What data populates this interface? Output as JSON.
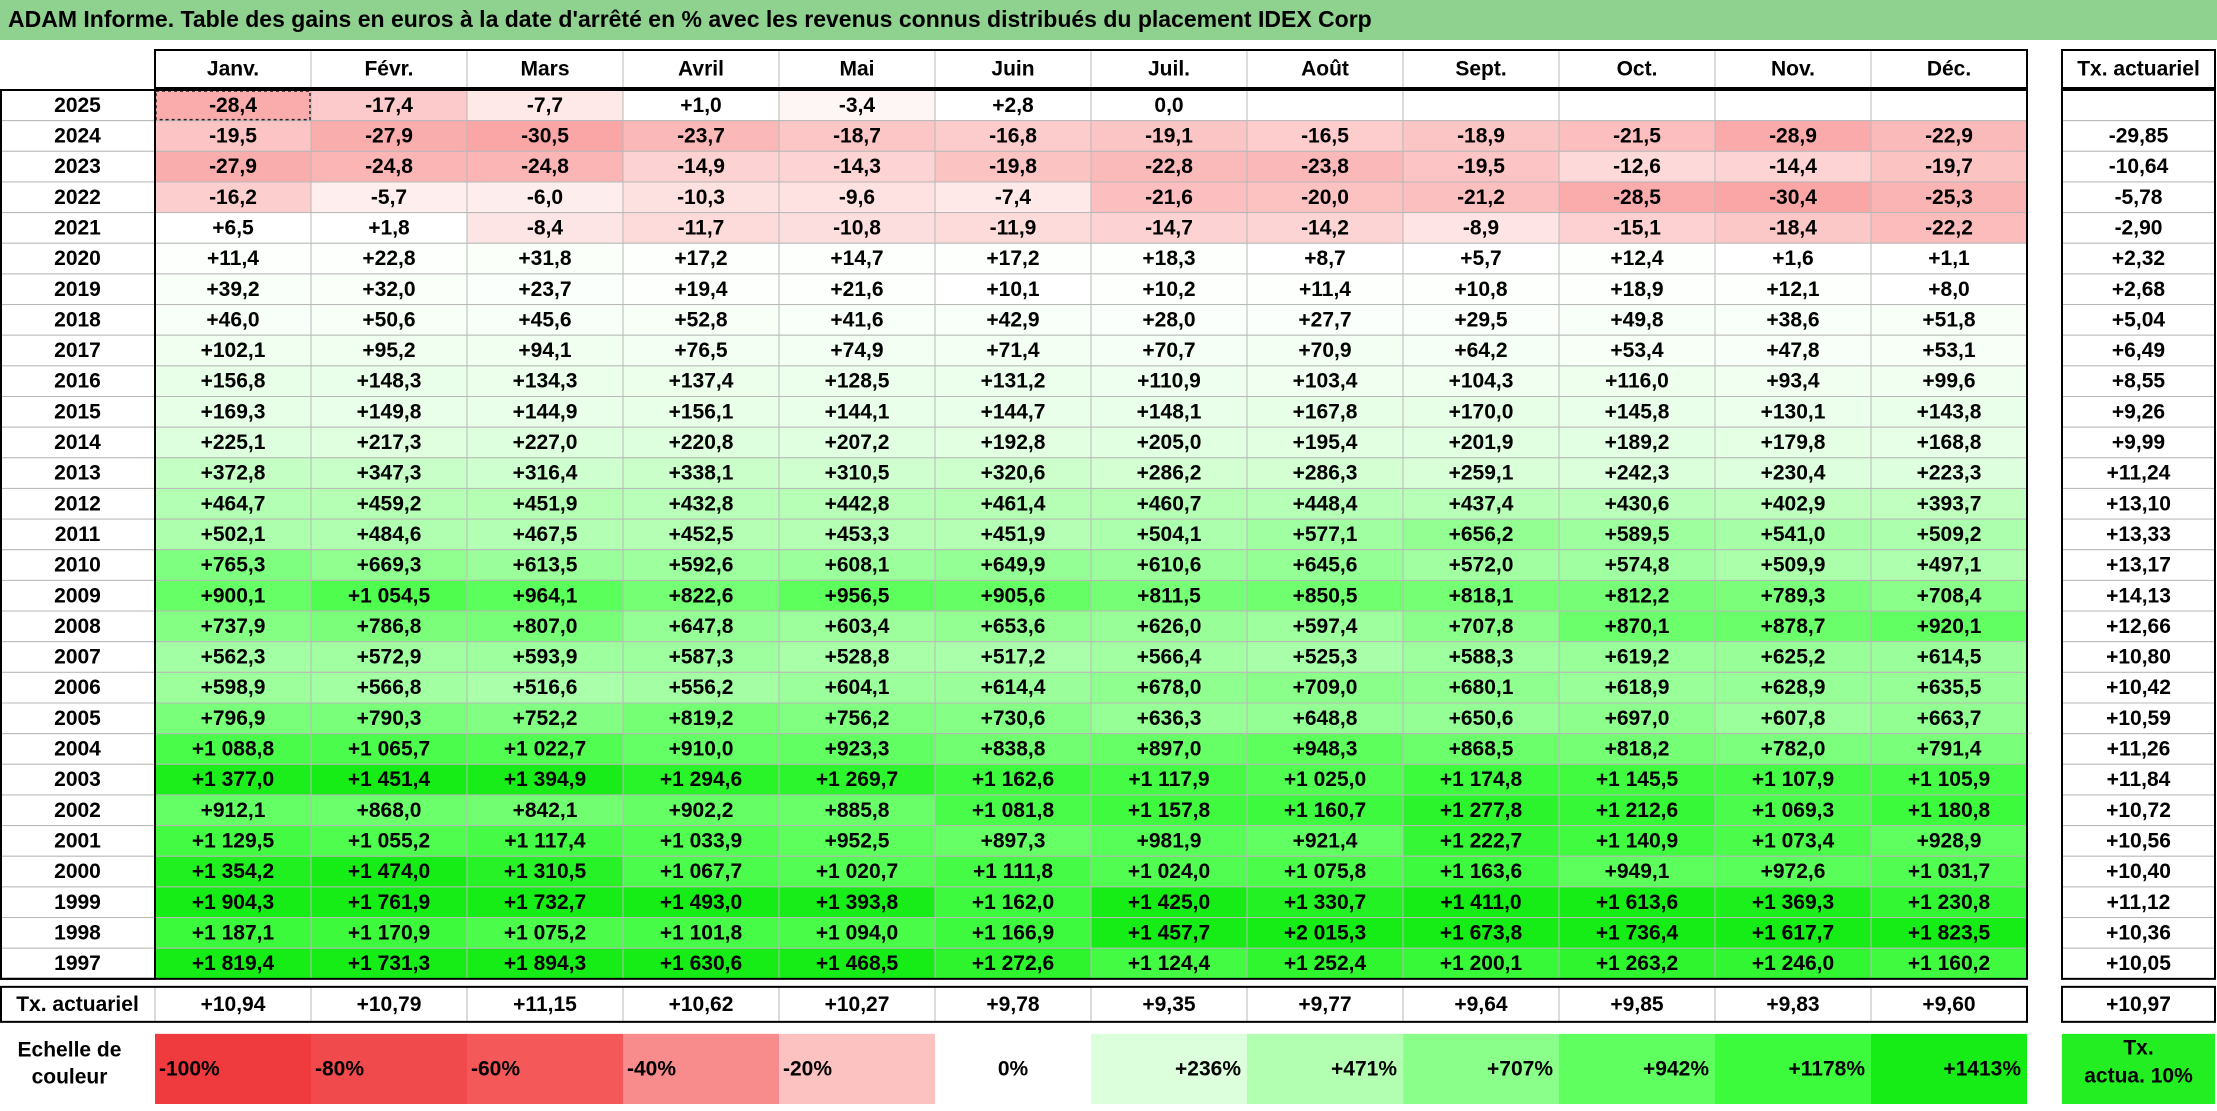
{
  "title": "ADAM Informe. Table des gains en euros à la date d'arrêté en % avec les revenus connus distribués du placement IDEX Corp",
  "table": {
    "columns": [
      "Janv.",
      "Févr.",
      "Mars",
      "Avril",
      "Mai",
      "Juin",
      "Juil.",
      "Août",
      "Sept.",
      "Oct.",
      "Nov.",
      "Déc."
    ],
    "rate_header": "Tx. actuariel",
    "rows": [
      {
        "year": "2025",
        "cells": [
          "-28,4",
          "-17,4",
          "-7,7",
          "+1,0",
          "-3,4",
          "+2,8",
          "0,0",
          null,
          null,
          null,
          null,
          null
        ],
        "rate": null
      },
      {
        "year": "2024",
        "cells": [
          "-19,5",
          "-27,9",
          "-30,5",
          "-23,7",
          "-18,7",
          "-16,8",
          "-19,1",
          "-16,5",
          "-18,9",
          "-21,5",
          "-28,9",
          "-22,9"
        ],
        "rate": "-29,85"
      },
      {
        "year": "2023",
        "cells": [
          "-27,9",
          "-24,8",
          "-24,8",
          "-14,9",
          "-14,3",
          "-19,8",
          "-22,8",
          "-23,8",
          "-19,5",
          "-12,6",
          "-14,4",
          "-19,7"
        ],
        "rate": "-10,64"
      },
      {
        "year": "2022",
        "cells": [
          "-16,2",
          "-5,7",
          "-6,0",
          "-10,3",
          "-9,6",
          "-7,4",
          "-21,6",
          "-20,0",
          "-21,2",
          "-28,5",
          "-30,4",
          "-25,3"
        ],
        "rate": "-5,78"
      },
      {
        "year": "2021",
        "cells": [
          "+6,5",
          "+1,8",
          "-8,4",
          "-11,7",
          "-10,8",
          "-11,9",
          "-14,7",
          "-14,2",
          "-8,9",
          "-15,1",
          "-18,4",
          "-22,2"
        ],
        "rate": "-2,90"
      },
      {
        "year": "2020",
        "cells": [
          "+11,4",
          "+22,8",
          "+31,8",
          "+17,2",
          "+14,7",
          "+17,2",
          "+18,3",
          "+8,7",
          "+5,7",
          "+12,4",
          "+1,6",
          "+1,1"
        ],
        "rate": "+2,32"
      },
      {
        "year": "2019",
        "cells": [
          "+39,2",
          "+32,0",
          "+23,7",
          "+19,4",
          "+21,6",
          "+10,1",
          "+10,2",
          "+11,4",
          "+10,8",
          "+18,9",
          "+12,1",
          "+8,0"
        ],
        "rate": "+2,68"
      },
      {
        "year": "2018",
        "cells": [
          "+46,0",
          "+50,6",
          "+45,6",
          "+52,8",
          "+41,6",
          "+42,9",
          "+28,0",
          "+27,7",
          "+29,5",
          "+49,8",
          "+38,6",
          "+51,8"
        ],
        "rate": "+5,04"
      },
      {
        "year": "2017",
        "cells": [
          "+102,1",
          "+95,2",
          "+94,1",
          "+76,5",
          "+74,9",
          "+71,4",
          "+70,7",
          "+70,9",
          "+64,2",
          "+53,4",
          "+47,8",
          "+53,1"
        ],
        "rate": "+6,49"
      },
      {
        "year": "2016",
        "cells": [
          "+156,8",
          "+148,3",
          "+134,3",
          "+137,4",
          "+128,5",
          "+131,2",
          "+110,9",
          "+103,4",
          "+104,3",
          "+116,0",
          "+93,4",
          "+99,6"
        ],
        "rate": "+8,55"
      },
      {
        "year": "2015",
        "cells": [
          "+169,3",
          "+149,8",
          "+144,9",
          "+156,1",
          "+144,1",
          "+144,7",
          "+148,1",
          "+167,8",
          "+170,0",
          "+145,8",
          "+130,1",
          "+143,8"
        ],
        "rate": "+9,26"
      },
      {
        "year": "2014",
        "cells": [
          "+225,1",
          "+217,3",
          "+227,0",
          "+220,8",
          "+207,2",
          "+192,8",
          "+205,0",
          "+195,4",
          "+201,9",
          "+189,2",
          "+179,8",
          "+168,8"
        ],
        "rate": "+9,99"
      },
      {
        "year": "2013",
        "cells": [
          "+372,8",
          "+347,3",
          "+316,4",
          "+338,1",
          "+310,5",
          "+320,6",
          "+286,2",
          "+286,3",
          "+259,1",
          "+242,3",
          "+230,4",
          "+223,3"
        ],
        "rate": "+11,24"
      },
      {
        "year": "2012",
        "cells": [
          "+464,7",
          "+459,2",
          "+451,9",
          "+432,8",
          "+442,8",
          "+461,4",
          "+460,7",
          "+448,4",
          "+437,4",
          "+430,6",
          "+402,9",
          "+393,7"
        ],
        "rate": "+13,10"
      },
      {
        "year": "2011",
        "cells": [
          "+502,1",
          "+484,6",
          "+467,5",
          "+452,5",
          "+453,3",
          "+451,9",
          "+504,1",
          "+577,1",
          "+656,2",
          "+589,5",
          "+541,0",
          "+509,2"
        ],
        "rate": "+13,33"
      },
      {
        "year": "2010",
        "cells": [
          "+765,3",
          "+669,3",
          "+613,5",
          "+592,6",
          "+608,1",
          "+649,9",
          "+610,6",
          "+645,6",
          "+572,0",
          "+574,8",
          "+509,9",
          "+497,1"
        ],
        "rate": "+13,17"
      },
      {
        "year": "2009",
        "cells": [
          "+900,1",
          "+1 054,5",
          "+964,1",
          "+822,6",
          "+956,5",
          "+905,6",
          "+811,5",
          "+850,5",
          "+818,1",
          "+812,2",
          "+789,3",
          "+708,4"
        ],
        "rate": "+14,13"
      },
      {
        "year": "2008",
        "cells": [
          "+737,9",
          "+786,8",
          "+807,0",
          "+647,8",
          "+603,4",
          "+653,6",
          "+626,0",
          "+597,4",
          "+707,8",
          "+870,1",
          "+878,7",
          "+920,1"
        ],
        "rate": "+12,66"
      },
      {
        "year": "2007",
        "cells": [
          "+562,3",
          "+572,9",
          "+593,9",
          "+587,3",
          "+528,8",
          "+517,2",
          "+566,4",
          "+525,3",
          "+588,3",
          "+619,2",
          "+625,2",
          "+614,5"
        ],
        "rate": "+10,80"
      },
      {
        "year": "2006",
        "cells": [
          "+598,9",
          "+566,8",
          "+516,6",
          "+556,2",
          "+604,1",
          "+614,4",
          "+678,0",
          "+709,0",
          "+680,1",
          "+618,9",
          "+628,9",
          "+635,5"
        ],
        "rate": "+10,42"
      },
      {
        "year": "2005",
        "cells": [
          "+796,9",
          "+790,3",
          "+752,2",
          "+819,2",
          "+756,2",
          "+730,6",
          "+636,3",
          "+648,8",
          "+650,6",
          "+697,0",
          "+607,8",
          "+663,7"
        ],
        "rate": "+10,59"
      },
      {
        "year": "2004",
        "cells": [
          "+1 088,8",
          "+1 065,7",
          "+1 022,7",
          "+910,0",
          "+923,3",
          "+838,8",
          "+897,0",
          "+948,3",
          "+868,5",
          "+818,2",
          "+782,0",
          "+791,4"
        ],
        "rate": "+11,26"
      },
      {
        "year": "2003",
        "cells": [
          "+1 377,0",
          "+1 451,4",
          "+1 394,9",
          "+1 294,6",
          "+1 269,7",
          "+1 162,6",
          "+1 117,9",
          "+1 025,0",
          "+1 174,8",
          "+1 145,5",
          "+1 107,9",
          "+1 105,9"
        ],
        "rate": "+11,84"
      },
      {
        "year": "2002",
        "cells": [
          "+912,1",
          "+868,0",
          "+842,1",
          "+902,2",
          "+885,8",
          "+1 081,8",
          "+1 157,8",
          "+1 160,7",
          "+1 277,8",
          "+1 212,6",
          "+1 069,3",
          "+1 180,8"
        ],
        "rate": "+10,72"
      },
      {
        "year": "2001",
        "cells": [
          "+1 129,5",
          "+1 055,2",
          "+1 117,4",
          "+1 033,9",
          "+952,5",
          "+897,3",
          "+981,9",
          "+921,4",
          "+1 222,7",
          "+1 140,9",
          "+1 073,4",
          "+928,9"
        ],
        "rate": "+10,56"
      },
      {
        "year": "2000",
        "cells": [
          "+1 354,2",
          "+1 474,0",
          "+1 310,5",
          "+1 067,7",
          "+1 020,7",
          "+1 111,8",
          "+1 024,0",
          "+1 075,8",
          "+1 163,6",
          "+949,1",
          "+972,6",
          "+1 031,7"
        ],
        "rate": "+10,40"
      },
      {
        "year": "1999",
        "cells": [
          "+1 904,3",
          "+1 761,9",
          "+1 732,7",
          "+1 493,0",
          "+1 393,8",
          "+1 162,0",
          "+1 425,0",
          "+1 330,7",
          "+1 411,0",
          "+1 613,6",
          "+1 369,3",
          "+1 230,8"
        ],
        "rate": "+11,12"
      },
      {
        "year": "1998",
        "cells": [
          "+1 187,1",
          "+1 170,9",
          "+1 075,2",
          "+1 101,8",
          "+1 094,0",
          "+1 166,9",
          "+1 457,7",
          "+2 015,3",
          "+1 673,8",
          "+1 736,4",
          "+1 617,7",
          "+1 823,5"
        ],
        "rate": "+10,36"
      },
      {
        "year": "1997",
        "cells": [
          "+1 819,4",
          "+1 731,3",
          "+1 894,3",
          "+1 630,6",
          "+1 468,5",
          "+1 272,6",
          "+1 124,4",
          "+1 252,4",
          "+1 200,1",
          "+1 263,2",
          "+1 246,0",
          "+1 160,2"
        ],
        "rate": "+10,05"
      }
    ],
    "footer": {
      "label": "Tx. actuariel",
      "cells": [
        "+10,94",
        "+10,79",
        "+11,15",
        "+10,62",
        "+10,27",
        "+9,78",
        "+9,35",
        "+9,77",
        "+9,64",
        "+9,85",
        "+9,83",
        "+9,60"
      ],
      "rate": "+10,97"
    }
  },
  "scale": {
    "label": [
      "Echelle de",
      "couleur"
    ],
    "stops": [
      {
        "value": -100,
        "label": "-100%",
        "color": "#ef3a3e"
      },
      {
        "value": -80,
        "label": "-80%",
        "color": "#f14a4c"
      },
      {
        "value": -60,
        "label": "-60%",
        "color": "#f45858"
      },
      {
        "value": -40,
        "label": "-40%",
        "color": "#f88c8c"
      },
      {
        "value": -20,
        "label": "-20%",
        "color": "#fcc2c2"
      },
      {
        "value": 0,
        "label": "0%",
        "color": "#ffffff"
      },
      {
        "value": 236,
        "label": "+236%",
        "color": "#dcffdc"
      },
      {
        "value": 471,
        "label": "+471%",
        "color": "#b2ffb2"
      },
      {
        "value": 707,
        "label": "+707%",
        "color": "#8aff8a"
      },
      {
        "value": 942,
        "label": "+942%",
        "color": "#5eff5e"
      },
      {
        "value": 1178,
        "label": "+1178%",
        "color": "#3cfa3c"
      },
      {
        "value": 1413,
        "label": "+1413%",
        "color": "#16ec16"
      }
    ],
    "rate_label": [
      "Tx.",
      "actua. 10%"
    ],
    "rate_color": "#22ee22"
  }
}
